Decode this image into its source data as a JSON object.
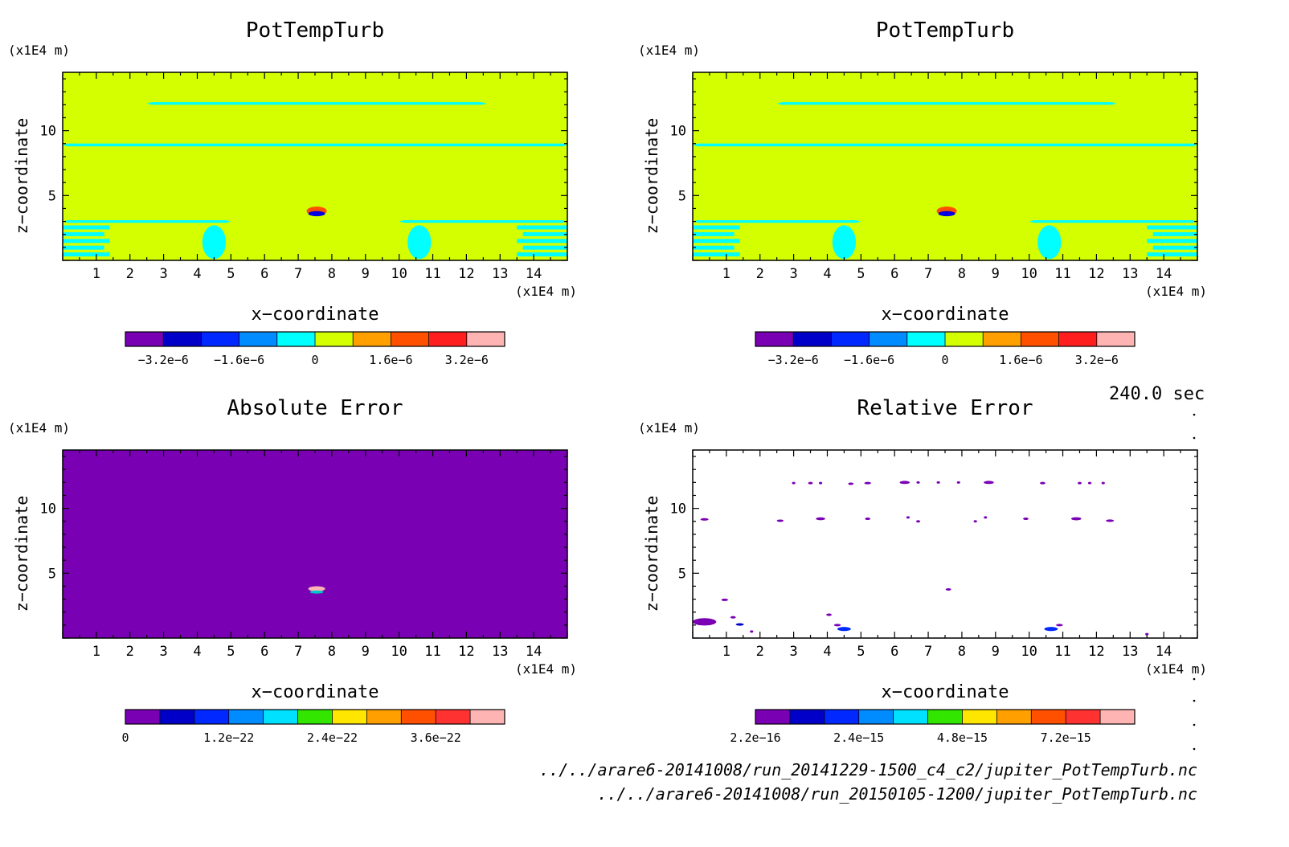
{
  "time_label": "240.0 sec",
  "file_paths": [
    "../../arare6-20141008/run_20141229-1500_c4_c2/jupiter_PotTempTurb.nc",
    "../../arare6-20141008/run_20150105-1200/jupiter_PotTempTurb.nc"
  ],
  "chart_data": [
    {
      "type": "heatmap",
      "title": "PotTempTurb",
      "xlabel": "x-coordinate",
      "ylabel": "z-coordinate",
      "x_unit": "(×1E4 m)",
      "y_unit": "(×1E4 m)",
      "xlim": [
        0,
        15
      ],
      "ylim": [
        0,
        14.5
      ],
      "xticks": [
        1,
        2,
        3,
        4,
        5,
        6,
        7,
        8,
        9,
        10,
        11,
        12,
        13,
        14
      ],
      "yticks": [
        5,
        10
      ],
      "background": "#d4ff00",
      "features": [
        {
          "kind": "band",
          "x0": 2.5,
          "x1": 12.6,
          "z": 12.1,
          "thick": 0.2,
          "color": "#00ffff"
        },
        {
          "kind": "band",
          "x0": 0,
          "x1": 15,
          "z": 8.9,
          "thick": 0.22,
          "color": "#00ffff"
        },
        {
          "kind": "band",
          "x0": 0,
          "x1": 5.0,
          "z": 3.0,
          "thick": 0.2,
          "color": "#00ffff"
        },
        {
          "kind": "band",
          "x0": 10.0,
          "x1": 15,
          "z": 3.0,
          "thick": 0.2,
          "color": "#00ffff"
        },
        {
          "kind": "stripes",
          "x0": 0,
          "x1": 1.4,
          "z0": 0.2,
          "z1": 2.8,
          "count": 5,
          "color": "#00ffff"
        },
        {
          "kind": "stripes",
          "x0": 13.5,
          "x1": 15,
          "z0": 0.2,
          "z1": 2.8,
          "count": 5,
          "color": "#00ffff"
        },
        {
          "kind": "blob",
          "x": 4.5,
          "z": 1.4,
          "rx": 0.35,
          "rz": 1.3,
          "color": "#00ffff"
        },
        {
          "kind": "blob",
          "x": 10.6,
          "z": 1.4,
          "rx": 0.35,
          "rz": 1.3,
          "color": "#00ffff"
        },
        {
          "kind": "blob",
          "x": 7.55,
          "z": 3.8,
          "rx": 0.3,
          "rz": 0.35,
          "color": "#ff5000"
        },
        {
          "kind": "blob",
          "x": 7.55,
          "z": 3.6,
          "rx": 0.25,
          "rz": 0.2,
          "color": "#0000e0"
        }
      ],
      "colorbar": {
        "colors": [
          "#7a00b4",
          "#0000c8",
          "#0028ff",
          "#008cff",
          "#00ffff",
          "#d4ff00",
          "#ffa000",
          "#ff5000",
          "#ff1e1e",
          "#ffb4b4"
        ],
        "tick_labels": [
          "-3.2e-6",
          "-1.6e-6",
          "0",
          "1.6e-6",
          "3.2e-6"
        ],
        "tick_positions": [
          1,
          3,
          5,
          7,
          9
        ]
      }
    },
    {
      "type": "heatmap",
      "title": "PotTempTurb",
      "xlabel": "x-coordinate",
      "ylabel": "z-coordinate",
      "x_unit": "(×1E4 m)",
      "y_unit": "(×1E4 m)",
      "xlim": [
        0,
        15
      ],
      "ylim": [
        0,
        14.5
      ],
      "xticks": [
        1,
        2,
        3,
        4,
        5,
        6,
        7,
        8,
        9,
        10,
        11,
        12,
        13,
        14
      ],
      "yticks": [
        5,
        10
      ],
      "background": "#d4ff00",
      "features": [
        {
          "kind": "band",
          "x0": 2.5,
          "x1": 12.6,
          "z": 12.1,
          "thick": 0.2,
          "color": "#00ffff"
        },
        {
          "kind": "band",
          "x0": 0,
          "x1": 15,
          "z": 8.9,
          "thick": 0.22,
          "color": "#00ffff"
        },
        {
          "kind": "band",
          "x0": 0,
          "x1": 5.0,
          "z": 3.0,
          "thick": 0.2,
          "color": "#00ffff"
        },
        {
          "kind": "band",
          "x0": 10.0,
          "x1": 15,
          "z": 3.0,
          "thick": 0.2,
          "color": "#00ffff"
        },
        {
          "kind": "stripes",
          "x0": 0,
          "x1": 1.4,
          "z0": 0.2,
          "z1": 2.8,
          "count": 5,
          "color": "#00ffff"
        },
        {
          "kind": "stripes",
          "x0": 13.5,
          "x1": 15,
          "z0": 0.2,
          "z1": 2.8,
          "count": 5,
          "color": "#00ffff"
        },
        {
          "kind": "blob",
          "x": 4.5,
          "z": 1.4,
          "rx": 0.35,
          "rz": 1.3,
          "color": "#00ffff"
        },
        {
          "kind": "blob",
          "x": 10.6,
          "z": 1.4,
          "rx": 0.35,
          "rz": 1.3,
          "color": "#00ffff"
        },
        {
          "kind": "blob",
          "x": 7.55,
          "z": 3.8,
          "rx": 0.3,
          "rz": 0.35,
          "color": "#ff5000"
        },
        {
          "kind": "blob",
          "x": 7.55,
          "z": 3.6,
          "rx": 0.25,
          "rz": 0.2,
          "color": "#0000e0"
        }
      ],
      "colorbar": {
        "colors": [
          "#7a00b4",
          "#0000c8",
          "#0028ff",
          "#008cff",
          "#00ffff",
          "#d4ff00",
          "#ffa000",
          "#ff5000",
          "#ff1e1e",
          "#ffb4b4"
        ],
        "tick_labels": [
          "-3.2e-6",
          "-1.6e-6",
          "0",
          "1.6e-6",
          "3.2e-6"
        ],
        "tick_positions": [
          1,
          3,
          5,
          7,
          9
        ]
      }
    },
    {
      "type": "heatmap",
      "title": "Absolute Error",
      "xlabel": "x-coordinate",
      "ylabel": "z-coordinate",
      "x_unit": "(×1E4 m)",
      "y_unit": "(×1E4 m)",
      "xlim": [
        0,
        15
      ],
      "ylim": [
        0,
        14.5
      ],
      "xticks": [
        1,
        2,
        3,
        4,
        5,
        6,
        7,
        8,
        9,
        10,
        11,
        12,
        13,
        14
      ],
      "yticks": [
        5,
        10
      ],
      "background": "#7a00b4",
      "features": [
        {
          "kind": "blob",
          "x": 7.55,
          "z": 3.8,
          "rx": 0.25,
          "rz": 0.2,
          "color": "#ffb4b4"
        },
        {
          "kind": "blob",
          "x": 7.55,
          "z": 3.55,
          "rx": 0.2,
          "rz": 0.12,
          "color": "#00c8c8"
        }
      ],
      "colorbar": {
        "colors": [
          "#7a00b4",
          "#0000c8",
          "#0028ff",
          "#008cff",
          "#00e0ff",
          "#32e600",
          "#ffe600",
          "#ffa000",
          "#ff5000",
          "#ff3232",
          "#ffb4b4"
        ],
        "tick_labels": [
          "0",
          "1.2e-22",
          "2.4e-22",
          "3.6e-22"
        ],
        "tick_positions": [
          0,
          3,
          6,
          9
        ]
      }
    },
    {
      "type": "heatmap",
      "title": "Relative Error",
      "xlabel": "x-coordinate",
      "ylabel": "z-coordinate",
      "x_unit": "(×1E4 m)",
      "y_unit": "(×1E4 m)",
      "xlim": [
        0,
        15
      ],
      "ylim": [
        0,
        14.5
      ],
      "xticks": [
        1,
        2,
        3,
        4,
        5,
        6,
        7,
        8,
        9,
        10,
        11,
        12,
        13,
        14
      ],
      "yticks": [
        5,
        10
      ],
      "background": "#ffffff",
      "features": [
        {
          "kind": "dot",
          "x": 3.0,
          "z": 11.95,
          "r": 0.05,
          "color": "#7a00b4"
        },
        {
          "kind": "dot",
          "x": 3.5,
          "z": 11.95,
          "r": 0.07,
          "color": "#7a00b4"
        },
        {
          "kind": "dot",
          "x": 3.8,
          "z": 11.95,
          "r": 0.05,
          "color": "#7a00b4"
        },
        {
          "kind": "dot",
          "x": 4.7,
          "z": 11.9,
          "r": 0.08,
          "color": "#7a00b4"
        },
        {
          "kind": "dot",
          "x": 5.2,
          "z": 11.95,
          "r": 0.1,
          "color": "#7a00b4"
        },
        {
          "kind": "dot",
          "x": 6.3,
          "z": 12.0,
          "r": 0.15,
          "color": "#7a00b4"
        },
        {
          "kind": "dot",
          "x": 6.7,
          "z": 12.0,
          "r": 0.05,
          "color": "#7a00b4"
        },
        {
          "kind": "dot",
          "x": 7.3,
          "z": 12.0,
          "r": 0.05,
          "color": "#7a00b4"
        },
        {
          "kind": "dot",
          "x": 7.9,
          "z": 12.0,
          "r": 0.05,
          "color": "#7a00b4"
        },
        {
          "kind": "dot",
          "x": 8.8,
          "z": 12.0,
          "r": 0.15,
          "color": "#7a00b4"
        },
        {
          "kind": "dot",
          "x": 10.4,
          "z": 11.95,
          "r": 0.08,
          "color": "#7a00b4"
        },
        {
          "kind": "dot",
          "x": 11.5,
          "z": 11.95,
          "r": 0.06,
          "color": "#7a00b4"
        },
        {
          "kind": "dot",
          "x": 11.8,
          "z": 11.95,
          "r": 0.05,
          "color": "#7a00b4"
        },
        {
          "kind": "dot",
          "x": 12.2,
          "z": 11.95,
          "r": 0.05,
          "color": "#7a00b4"
        },
        {
          "kind": "dot",
          "x": 0.35,
          "z": 9.15,
          "r": 0.12,
          "color": "#7a00b4"
        },
        {
          "kind": "dot",
          "x": 2.6,
          "z": 9.05,
          "r": 0.1,
          "color": "#7a00b4"
        },
        {
          "kind": "dot",
          "x": 3.8,
          "z": 9.2,
          "r": 0.14,
          "color": "#7a00b4"
        },
        {
          "kind": "dot",
          "x": 5.2,
          "z": 9.2,
          "r": 0.08,
          "color": "#7a00b4"
        },
        {
          "kind": "dot",
          "x": 6.4,
          "z": 9.3,
          "r": 0.05,
          "color": "#7a00b4"
        },
        {
          "kind": "dot",
          "x": 6.7,
          "z": 9.0,
          "r": 0.06,
          "color": "#7a00b4"
        },
        {
          "kind": "dot",
          "x": 8.4,
          "z": 9.0,
          "r": 0.05,
          "color": "#7a00b4"
        },
        {
          "kind": "dot",
          "x": 8.7,
          "z": 9.3,
          "r": 0.05,
          "color": "#7a00b4"
        },
        {
          "kind": "dot",
          "x": 9.9,
          "z": 9.2,
          "r": 0.08,
          "color": "#7a00b4"
        },
        {
          "kind": "dot",
          "x": 11.4,
          "z": 9.2,
          "r": 0.15,
          "color": "#7a00b4"
        },
        {
          "kind": "dot",
          "x": 12.4,
          "z": 9.05,
          "r": 0.12,
          "color": "#7a00b4"
        },
        {
          "kind": "dot",
          "x": 7.6,
          "z": 3.75,
          "r": 0.08,
          "color": "#7a00b4"
        },
        {
          "kind": "dot",
          "x": 0.95,
          "z": 2.95,
          "r": 0.1,
          "color": "#7a00b4"
        },
        {
          "kind": "dot",
          "x": 1.2,
          "z": 1.6,
          "r": 0.08,
          "color": "#7a00b4"
        },
        {
          "kind": "dot",
          "x": 0.35,
          "z": 1.25,
          "r": 0.35,
          "color": "#7a00b4"
        },
        {
          "kind": "dot",
          "x": 1.4,
          "z": 1.05,
          "r": 0.12,
          "color": "#0000c8"
        },
        {
          "kind": "dot",
          "x": 1.75,
          "z": 0.5,
          "r": 0.05,
          "color": "#7a00b4"
        },
        {
          "kind": "dot",
          "x": 4.05,
          "z": 1.8,
          "r": 0.08,
          "color": "#7a00b4"
        },
        {
          "kind": "dot",
          "x": 4.5,
          "z": 0.7,
          "r": 0.2,
          "color": "#0028ff"
        },
        {
          "kind": "dot",
          "x": 4.3,
          "z": 1.0,
          "r": 0.1,
          "color": "#7a00b4"
        },
        {
          "kind": "dot",
          "x": 10.65,
          "z": 0.7,
          "r": 0.2,
          "color": "#0028ff"
        },
        {
          "kind": "dot",
          "x": 10.9,
          "z": 1.0,
          "r": 0.1,
          "color": "#7a00b4"
        },
        {
          "kind": "dot",
          "x": 13.5,
          "z": 0.3,
          "r": 0.05,
          "color": "#7a00b4"
        }
      ],
      "colorbar": {
        "colors": [
          "#7a00b4",
          "#0000c8",
          "#0028ff",
          "#008cff",
          "#00e0ff",
          "#32e600",
          "#ffe600",
          "#ffa000",
          "#ff5000",
          "#ff3232",
          "#ffb4b4"
        ],
        "tick_labels": [
          "2.2e-16",
          "2.4e-15",
          "4.8e-15",
          "7.2e-15"
        ],
        "tick_positions": [
          0,
          3,
          6,
          9
        ]
      }
    }
  ]
}
